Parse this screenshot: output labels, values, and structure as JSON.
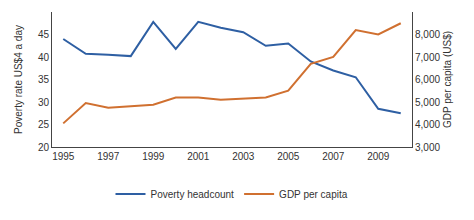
{
  "chart_data": {
    "type": "line",
    "x": [
      1995,
      1996,
      1997,
      1998,
      1999,
      2000,
      2001,
      2002,
      2003,
      2004,
      2005,
      2006,
      2007,
      2008,
      2009,
      2010
    ],
    "series": [
      {
        "name": "Poverty headcount",
        "color": "#2E5FA3",
        "values": [
          44.0,
          40.7,
          40.5,
          40.2,
          47.8,
          41.8,
          47.8,
          46.5,
          45.5,
          42.5,
          43.0,
          39.0,
          37.0,
          35.5,
          28.5,
          27.5
        ]
      },
      {
        "name": "GDP per capita",
        "color": "#D07030",
        "axis": "y2",
        "values": [
          4050,
          4950,
          4750,
          4800,
          4880,
          5200,
          5200,
          5100,
          5150,
          5200,
          5500,
          6700,
          7000,
          8200,
          8000,
          8500
        ]
      }
    ],
    "ylabel": "Poverty rate US$4 a day",
    "y2label": "GDP per capita (US$)",
    "xlim": [
      1994.5,
      2010.5
    ],
    "xticks": [
      1995,
      1997,
      1999,
      2001,
      2003,
      2005,
      2007,
      2009
    ],
    "ylim": [
      20,
      50
    ],
    "yticks": [
      20,
      25,
      30,
      35,
      40,
      45
    ],
    "y2lim": [
      3000,
      9000
    ],
    "y2ticks": [
      {
        "value": 3000,
        "label": "3,000"
      },
      {
        "value": 4000,
        "label": "4,000"
      },
      {
        "value": 5000,
        "label": "5,000"
      },
      {
        "value": 6000,
        "label": "6,000"
      },
      {
        "value": 7000,
        "label": "7,000"
      },
      {
        "value": 8000,
        "label": "8,000"
      }
    ],
    "grid": false,
    "legend": "bottom"
  }
}
